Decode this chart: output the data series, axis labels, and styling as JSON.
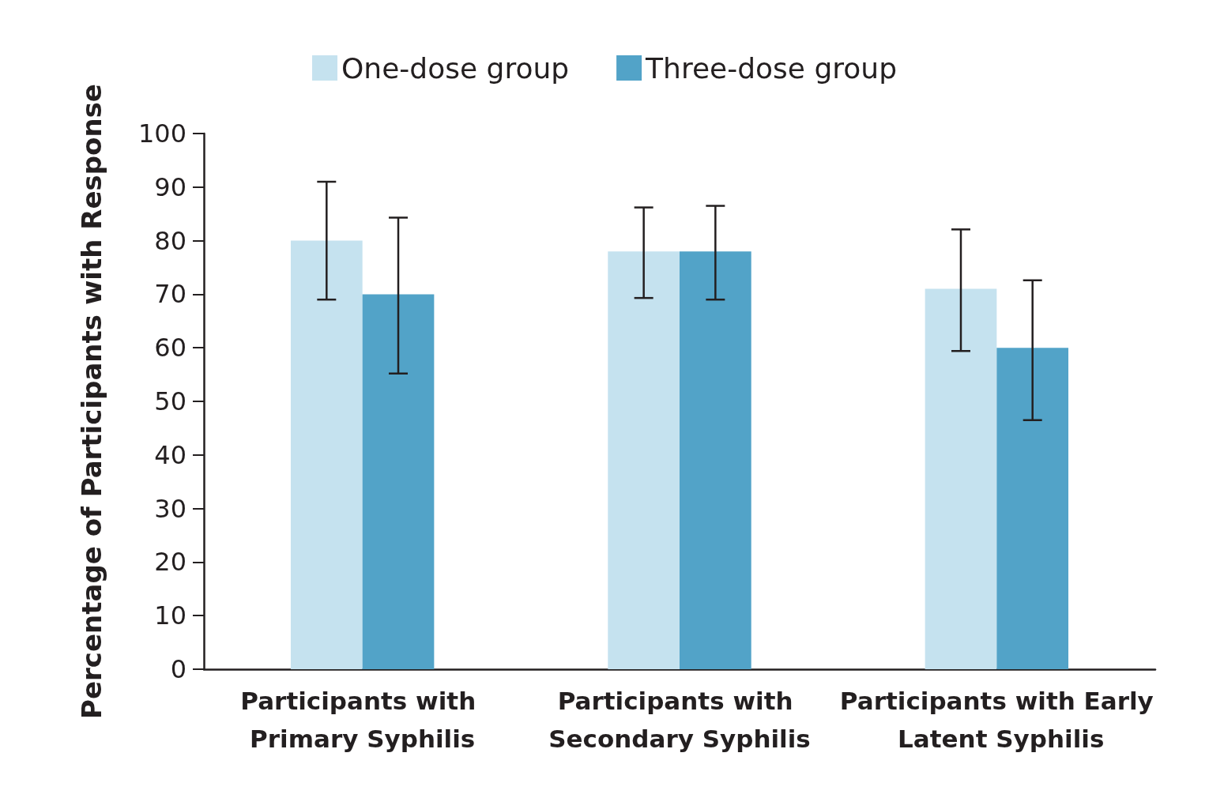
{
  "chart_data": {
    "type": "bar",
    "ylabel": "Percentage of Participants with Response",
    "categories": [
      "Participants with Primary Syphilis",
      "Participants with Secondary Syphilis",
      "Participants with Early Latent Syphilis"
    ],
    "series": [
      {
        "name": "One-dose group",
        "color": "#c5e2ef",
        "values": [
          80,
          78,
          71
        ],
        "errors": [
          [
            69,
            91
          ],
          [
            69.3,
            86.2
          ],
          [
            59.4,
            82.1
          ]
        ]
      },
      {
        "name": "Three-dose group",
        "color": "#52a3c8",
        "values": [
          70,
          78,
          60
        ],
        "errors": [
          [
            55.2,
            84.3
          ],
          [
            69,
            86.5
          ],
          [
            46.5,
            72.6
          ]
        ]
      }
    ],
    "ylim": [
      0,
      100
    ],
    "yticks": [
      0,
      10,
      20,
      30,
      40,
      50,
      60,
      70,
      80,
      90,
      100
    ],
    "grid": false,
    "legend": "top"
  }
}
